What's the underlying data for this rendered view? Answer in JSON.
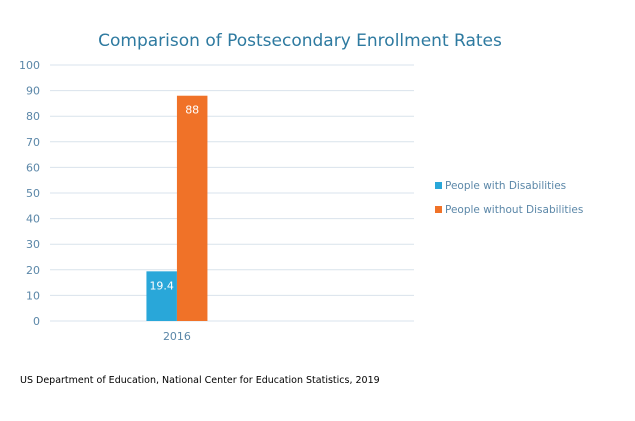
{
  "chart_data": {
    "type": "bar",
    "title": "Comparison of Postsecondary Enrollment Rates",
    "categories": [
      "2016"
    ],
    "series": [
      {
        "name": "People with Disabilities",
        "values": [
          19.4
        ],
        "color": "#29a7d9"
      },
      {
        "name": "People without Disabilities",
        "values": [
          88
        ],
        "color": "#f07228"
      }
    ],
    "data_labels": [
      "19.4",
      "88"
    ],
    "ylim": [
      0,
      100
    ],
    "yticks": [
      0,
      10,
      20,
      30,
      40,
      50,
      60,
      70,
      80,
      90,
      100
    ],
    "grid": true,
    "legend": "right",
    "xlabel": "",
    "ylabel": ""
  },
  "source": "US Department of Education, National Center for Education Statistics, 2019",
  "colors": {
    "title": "#2e7aa0",
    "axis_text": "#5b87a8",
    "grid": "#d9e3ec"
  }
}
